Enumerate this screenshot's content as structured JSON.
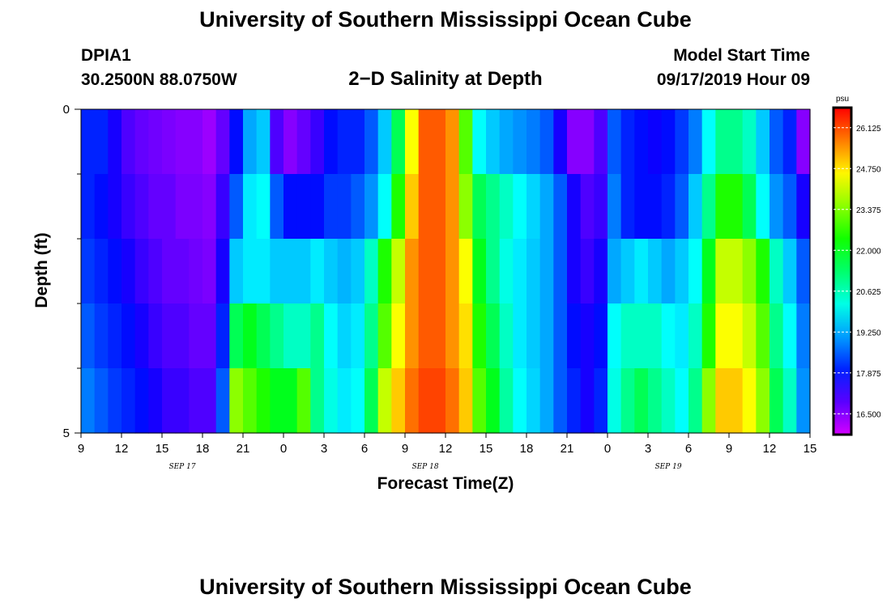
{
  "page": {
    "title_top": "University of Southern Mississippi Ocean Cube",
    "title_bottom": "University of Southern Mississippi Ocean Cube",
    "station_id": "DPIA1",
    "station_coords": "30.2500N 88.0750W",
    "plot_title": "2−D Salinity at Depth",
    "model_start_label": "Model Start Time",
    "model_start_value": "09/17/2019 Hour 09"
  },
  "chart_data": {
    "type": "heatmap",
    "title": "2−D Salinity at Depth",
    "xlabel": "Forecast Time(Z)",
    "ylabel": "Depth (ft)",
    "x_tick_labels": [
      "9",
      "12",
      "15",
      "18",
      "21",
      "0",
      "3",
      "6",
      "9",
      "12",
      "15",
      "18",
      "21",
      "0",
      "3",
      "6",
      "9",
      "12",
      "15"
    ],
    "date_labels": [
      {
        "text": "SEP 17",
        "at_tick": 2.5
      },
      {
        "text": "SEP 18",
        "at_tick": 8.5
      },
      {
        "text": "SEP 19",
        "at_tick": 14.5
      }
    ],
    "y_tick_labels": [
      "0",
      "5"
    ],
    "ylim": [
      0,
      5
    ],
    "y_minor_ticks": [
      1,
      2,
      3,
      4
    ],
    "x_hours": 54,
    "depth_rows": 5,
    "colorbar": {
      "unit": "psu",
      "min": 15.8,
      "max": 26.8,
      "tick_labels": [
        "16.500",
        "17.875",
        "19.250",
        "20.625",
        "22.000",
        "23.375",
        "24.750",
        "26.125"
      ],
      "tick_values": [
        16.5,
        17.875,
        19.25,
        20.625,
        22.0,
        23.375,
        24.75,
        26.125
      ]
    },
    "salinity_psu": [
      [
        18.0,
        18.0,
        17.5,
        17.0,
        16.8,
        16.7,
        16.6,
        16.5,
        16.5,
        16.3,
        16.8,
        17.8,
        19.2,
        19.5,
        17.0,
        16.5,
        16.8,
        17.2,
        17.8,
        18.0,
        18.0,
        18.5,
        19.5,
        21.5,
        24.5,
        26.0,
        26.0,
        25.5,
        23.0,
        20.0,
        19.5,
        19.2,
        19.0,
        18.8,
        18.5,
        17.5,
        16.5,
        16.5,
        17.0,
        18.5,
        18.0,
        17.8,
        17.6,
        17.8,
        18.2,
        18.8,
        20.0,
        21.0,
        21.0,
        20.5,
        19.5,
        18.5,
        18.0,
        16.5
      ],
      [
        18.0,
        17.8,
        17.5,
        17.2,
        17.0,
        16.8,
        16.8,
        16.6,
        16.6,
        16.5,
        17.2,
        18.5,
        19.8,
        20.0,
        18.5,
        17.8,
        17.8,
        17.8,
        18.2,
        18.2,
        18.5,
        19.0,
        20.0,
        22.5,
        25.0,
        26.0,
        26.0,
        25.5,
        23.5,
        21.5,
        21.0,
        20.5,
        20.0,
        19.6,
        19.2,
        18.5,
        17.5,
        17.0,
        17.2,
        18.8,
        18.0,
        17.8,
        17.8,
        18.0,
        18.5,
        19.5,
        21.0,
        22.5,
        22.5,
        21.5,
        20.0,
        19.0,
        18.5,
        17.5
      ],
      [
        18.2,
        18.0,
        17.8,
        17.5,
        17.2,
        17.0,
        16.8,
        16.8,
        16.7,
        16.6,
        17.5,
        19.5,
        19.8,
        19.8,
        19.5,
        19.5,
        19.5,
        19.8,
        19.5,
        19.3,
        19.5,
        20.5,
        22.5,
        24.0,
        25.5,
        26.0,
        26.0,
        25.5,
        24.5,
        22.0,
        21.0,
        20.2,
        19.8,
        19.5,
        19.2,
        18.5,
        17.5,
        17.2,
        17.5,
        19.2,
        19.5,
        19.8,
        19.5,
        19.2,
        19.5,
        20.0,
        22.0,
        24.0,
        24.0,
        23.5,
        22.5,
        20.5,
        19.5,
        18.5
      ],
      [
        18.5,
        18.2,
        18.0,
        17.8,
        17.5,
        17.2,
        17.0,
        17.0,
        16.8,
        16.8,
        18.0,
        21.5,
        22.0,
        21.5,
        21.0,
        20.5,
        20.5,
        21.0,
        20.0,
        19.6,
        19.8,
        21.0,
        23.0,
        24.5,
        25.5,
        26.0,
        26.0,
        25.5,
        24.8,
        22.5,
        21.5,
        20.5,
        19.8,
        19.5,
        19.2,
        18.5,
        17.8,
        17.5,
        17.8,
        20.0,
        20.5,
        20.5,
        20.5,
        20.0,
        19.8,
        20.5,
        22.5,
        24.5,
        24.5,
        24.0,
        23.0,
        21.0,
        20.0,
        18.8
      ],
      [
        18.8,
        18.5,
        18.2,
        18.0,
        17.8,
        17.5,
        17.2,
        17.2,
        17.0,
        17.0,
        18.5,
        23.5,
        23.0,
        22.5,
        22.0,
        22.0,
        23.0,
        21.0,
        20.2,
        19.8,
        20.0,
        21.5,
        24.0,
        25.0,
        25.8,
        26.2,
        26.2,
        25.8,
        25.0,
        23.0,
        22.0,
        20.8,
        20.0,
        19.6,
        19.2,
        18.5,
        18.0,
        17.5,
        18.0,
        20.2,
        21.0,
        21.5,
        21.0,
        20.5,
        20.0,
        21.0,
        23.5,
        25.0,
        25.0,
        24.5,
        23.5,
        21.5,
        20.5,
        19.0
      ]
    ]
  }
}
